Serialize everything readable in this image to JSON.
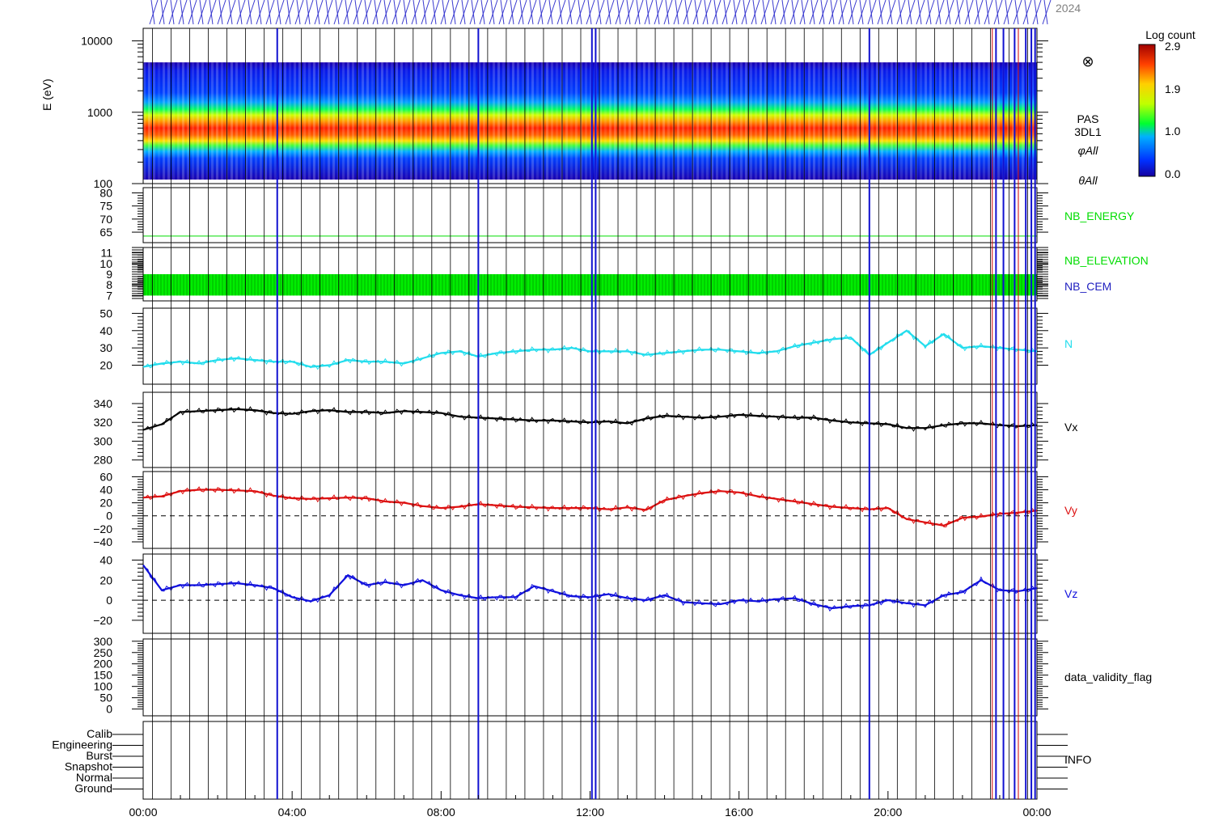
{
  "header": {
    "year": "2024"
  },
  "colorbar": {
    "title": "Log count",
    "ticks": [
      "2.9",
      "1.9",
      "1.0",
      "0.0"
    ],
    "tick_values": [
      2.9,
      1.9,
      1.0,
      0.0
    ]
  },
  "time_axis": {
    "ticks": [
      "00:00",
      "04:00",
      "08:00",
      "12:00",
      "16:00",
      "20:00",
      "00:00"
    ],
    "range_hours": [
      0,
      24
    ]
  },
  "chart_data": [
    {
      "type": "heatmap",
      "panel": "spectrogram",
      "ylabel": "E (eV)",
      "yscale": "log",
      "ylim": [
        100,
        15000
      ],
      "yticks": [
        "10000",
        "1000",
        "100"
      ],
      "ytick_values": [
        10000,
        1000,
        100
      ],
      "labels": [
        "PAS",
        "3DL1",
        "φAll",
        "θAll"
      ],
      "marker_symbol": "⊗",
      "band_center_eV": 650,
      "band_edges_eV": [
        400,
        5000
      ]
    },
    {
      "type": "line",
      "panel": "nb_energy",
      "label": "NB_ENERGY",
      "color": "#00dd00",
      "yticks": [
        "80",
        "75",
        "70",
        "65"
      ],
      "ytick_values": [
        80,
        75,
        70,
        65
      ],
      "ylim": [
        61,
        82
      ],
      "constant_value": 63.5
    },
    {
      "type": "area",
      "panel": "nb_elevation_cem",
      "labels": [
        "NB_ELEVATION",
        "NB_CEM"
      ],
      "label_colors": [
        "#00dd00",
        "#2020c0"
      ],
      "yticks": [
        "11",
        "10",
        "9",
        "8",
        "7"
      ],
      "ytick_values": [
        11,
        10,
        9,
        8,
        7
      ],
      "ylim": [
        6.5,
        11.5
      ],
      "band": [
        7,
        9
      ]
    },
    {
      "type": "line",
      "panel": "density",
      "label": "N",
      "color": "#22dded",
      "yticks": [
        "50",
        "40",
        "30",
        "20"
      ],
      "ytick_values": [
        50,
        40,
        30,
        20
      ],
      "ylim": [
        9,
        53
      ],
      "x_hours": [
        0,
        0.5,
        1,
        1.5,
        2,
        2.5,
        3,
        3.5,
        4,
        4.5,
        5,
        5.5,
        6,
        6.5,
        7,
        7.5,
        8,
        8.5,
        9,
        9.5,
        10,
        10.5,
        11,
        11.5,
        12,
        12.5,
        13,
        13.5,
        14,
        14.5,
        15,
        15.5,
        16,
        16.5,
        17,
        17.5,
        18,
        18.5,
        19,
        19.5,
        20,
        20.5,
        21,
        21.5,
        22,
        22.5,
        23,
        23.5,
        24
      ],
      "values": [
        19,
        21,
        22,
        21,
        23,
        24,
        23,
        22,
        22,
        19,
        20,
        23,
        22,
        22,
        21,
        24,
        27,
        28,
        25,
        27,
        28,
        29,
        29,
        30,
        28,
        28,
        28,
        26,
        27,
        28,
        29,
        29,
        28,
        27,
        28,
        31,
        33,
        35,
        36,
        26,
        33,
        40,
        31,
        38,
        30,
        31,
        30,
        29,
        28
      ]
    },
    {
      "type": "line",
      "panel": "velocity_x",
      "label": "Vx",
      "color": "#000000",
      "yticks": [
        "340",
        "320",
        "300",
        "280"
      ],
      "ytick_values": [
        340,
        320,
        300,
        280
      ],
      "ylim": [
        272,
        352
      ],
      "x_hours": [
        0,
        0.5,
        1,
        1.5,
        2,
        2.5,
        3,
        3.5,
        4,
        4.5,
        5,
        5.5,
        6,
        6.5,
        7,
        7.5,
        8,
        8.5,
        9,
        9.5,
        10,
        10.5,
        11,
        11.5,
        12,
        12.5,
        13,
        13.5,
        14,
        14.5,
        15,
        15.5,
        16,
        16.5,
        17,
        17.5,
        18,
        18.5,
        19,
        19.5,
        20,
        20.5,
        21,
        21.5,
        22,
        22.5,
        23,
        23.5,
        24
      ],
      "values": [
        312,
        318,
        331,
        332,
        333,
        334,
        333,
        330,
        329,
        332,
        333,
        331,
        331,
        330,
        332,
        331,
        330,
        326,
        325,
        324,
        323,
        322,
        322,
        321,
        320,
        321,
        319,
        324,
        327,
        326,
        325,
        326,
        328,
        327,
        326,
        325,
        325,
        322,
        320,
        319,
        318,
        314,
        314,
        317,
        319,
        319,
        317,
        316,
        317
      ]
    },
    {
      "type": "line",
      "panel": "velocity_y",
      "label": "Vy",
      "color": "#dd1111",
      "yticks": [
        "60",
        "40",
        "20",
        "0",
        "−20",
        "−40"
      ],
      "ytick_values": [
        60,
        40,
        20,
        0,
        -20,
        -40
      ],
      "ylim": [
        -50,
        68
      ],
      "zero_line": true,
      "x_hours": [
        0,
        0.5,
        1,
        1.5,
        2,
        2.5,
        3,
        3.5,
        4,
        4.5,
        5,
        5.5,
        6,
        6.5,
        7,
        7.5,
        8,
        8.5,
        9,
        9.5,
        10,
        10.5,
        11,
        11.5,
        12,
        12.5,
        13,
        13.5,
        14,
        14.5,
        15,
        15.5,
        16,
        16.5,
        17,
        17.5,
        18,
        18.5,
        19,
        19.5,
        20,
        20.5,
        21,
        21.5,
        22,
        22.5,
        23,
        23.5,
        24
      ],
      "values": [
        28,
        30,
        38,
        40,
        40,
        39,
        38,
        31,
        27,
        26,
        27,
        28,
        27,
        22,
        20,
        15,
        12,
        14,
        18,
        16,
        14,
        13,
        12,
        12,
        12,
        10,
        13,
        9,
        24,
        30,
        35,
        38,
        36,
        30,
        26,
        22,
        18,
        14,
        12,
        10,
        12,
        -5,
        -10,
        -15,
        -3,
        -1,
        3,
        5,
        8
      ]
    },
    {
      "type": "line",
      "panel": "velocity_z",
      "label": "Vz",
      "color": "#1111dd",
      "yticks": [
        "40",
        "20",
        "0",
        "−20"
      ],
      "ytick_values": [
        40,
        20,
        0,
        -20
      ],
      "ylim": [
        -33,
        46
      ],
      "zero_line": true,
      "x_hours": [
        0,
        0.5,
        1,
        1.5,
        2,
        2.5,
        3,
        3.5,
        4,
        4.5,
        5,
        5.5,
        6,
        6.5,
        7,
        7.5,
        8,
        8.5,
        9,
        9.5,
        10,
        10.5,
        11,
        11.5,
        12,
        12.5,
        13,
        13.5,
        14,
        14.5,
        15,
        15.5,
        16,
        16.5,
        17,
        17.5,
        18,
        18.5,
        19,
        19.5,
        20,
        20.5,
        21,
        21.5,
        22,
        22.5,
        23,
        23.5,
        24
      ],
      "values": [
        35,
        10,
        15,
        15,
        16,
        17,
        15,
        12,
        3,
        -1,
        5,
        25,
        15,
        18,
        15,
        20,
        10,
        5,
        2,
        3,
        3,
        14,
        9,
        4,
        3,
        6,
        2,
        0,
        5,
        -2,
        -3,
        -4,
        0,
        -1,
        1,
        2,
        -4,
        -8,
        -6,
        -5,
        0,
        -3,
        -5,
        5,
        8,
        20,
        10,
        9,
        12
      ]
    },
    {
      "type": "line",
      "panel": "data_validity_flag",
      "label": "data_validity_flag",
      "color": "#000000",
      "yticks": [
        "300",
        "250",
        "200",
        "150",
        "100",
        "50",
        "0"
      ],
      "ytick_values": [
        300,
        250,
        200,
        150,
        100,
        50,
        0
      ],
      "ylim": [
        -30,
        310
      ]
    },
    {
      "type": "line",
      "panel": "info",
      "label": "INFO",
      "color": "#000000",
      "yticks": [
        "Calib",
        "Engineering",
        "Burst",
        "Snapshot",
        "Normal",
        "Ground"
      ]
    }
  ]
}
